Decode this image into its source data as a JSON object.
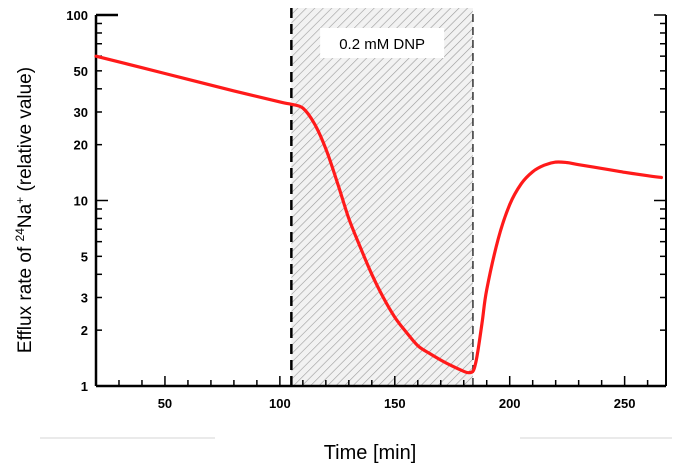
{
  "chart_data": {
    "type": "line",
    "title": "",
    "xlabel": "Time [min]",
    "ylabel": {
      "prefix": "Efflux rate of ",
      "isotope_mass": "24",
      "element": "Na",
      "charge": "+",
      "suffix": " (relative value)"
    },
    "xlim": [
      20,
      268
    ],
    "ylim": [
      1,
      100
    ],
    "yscale": "log",
    "x_ticks": [
      50,
      100,
      150,
      200,
      250
    ],
    "y_ticks": [
      1,
      2,
      3,
      5,
      10,
      20,
      30,
      50,
      100
    ],
    "grid": false,
    "legend": "none",
    "treatment": {
      "label": "0.2 mM DNP",
      "x_start": 105,
      "x_end": 184
    },
    "series": [
      {
        "color": "#ff1a1a",
        "x": [
          20,
          40,
          60,
          80,
          100,
          105,
          110,
          115,
          120,
          125,
          130,
          135,
          140,
          145,
          150,
          155,
          160,
          165,
          170,
          175,
          180,
          182,
          184,
          185,
          186,
          188,
          190,
          195,
          200,
          205,
          210,
          215,
          220,
          225,
          230,
          240,
          250,
          260,
          266
        ],
        "y": [
          60,
          52,
          45,
          39,
          34,
          33,
          31.5,
          26,
          19,
          12.5,
          8,
          5.6,
          4.0,
          3.0,
          2.35,
          1.95,
          1.65,
          1.5,
          1.38,
          1.28,
          1.2,
          1.18,
          1.2,
          1.3,
          1.5,
          2.2,
          3.3,
          6.2,
          9.5,
          12.3,
          14.3,
          15.5,
          16.1,
          16.0,
          15.6,
          14.9,
          14.2,
          13.6,
          13.3
        ]
      }
    ]
  }
}
